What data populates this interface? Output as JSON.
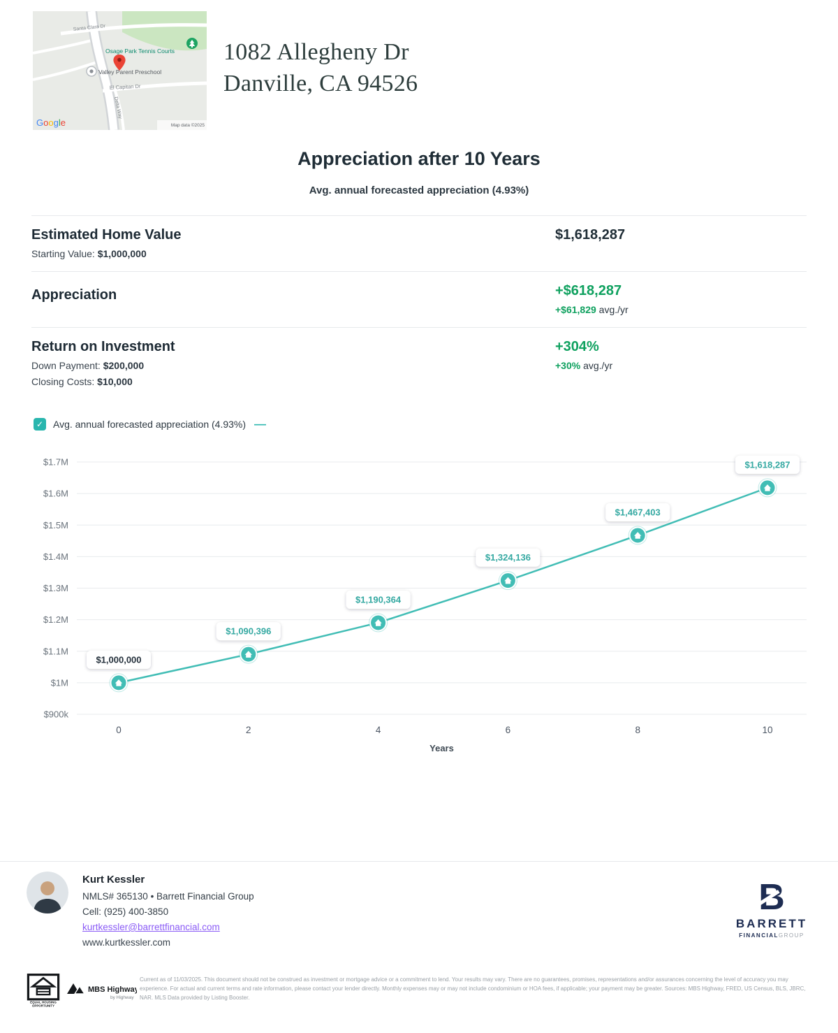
{
  "map": {
    "street_santa_clara": "Santa Clara Dr",
    "poi_tennis": "Osage Park Tennis Courts",
    "poi_preschool": "Valley Parent Preschool",
    "street_el_capitan": "El Capitan Dr",
    "street_delta": "Delta Way",
    "google_letters": [
      "G",
      "o",
      "o",
      "g",
      "l",
      "e"
    ],
    "attribution": "Map data ©2025"
  },
  "header": {
    "address_line1": "1082 Allegheny Dr",
    "address_line2": "Danville, CA 94526"
  },
  "report": {
    "title": "Appreciation after 10 Years",
    "subtitle": "Avg. annual forecasted appreciation (4.93%)"
  },
  "stats": {
    "home_value": {
      "title": "Estimated Home Value",
      "sub_label": "Starting Value: ",
      "sub_value": "$1,000,000",
      "amount": "$1,618,287"
    },
    "appreciation": {
      "title": "Appreciation",
      "amount": "+$618,287",
      "sub_value": "+$61,829",
      "sub_suffix": " avg./yr"
    },
    "roi": {
      "title": "Return on Investment",
      "down_label": "Down Payment: ",
      "down_value": "$200,000",
      "closing_label": "Closing Costs: ",
      "closing_value": "$10,000",
      "amount": "+304%",
      "sub_value": "+30%",
      "sub_suffix": " avg./yr"
    }
  },
  "legend": {
    "check": "✓",
    "label": "Avg. annual forecasted appreciation (4.93%)",
    "dash": "—"
  },
  "chart_data": {
    "type": "line",
    "title": "Appreciation after 10 Years",
    "series_name": "Avg. annual forecasted appreciation (4.93%)",
    "x": [
      0,
      2,
      4,
      6,
      8,
      10
    ],
    "values": [
      1000000,
      1090396,
      1190364,
      1324136,
      1467403,
      1618287
    ],
    "point_labels": [
      "$1,000,000",
      "$1,090,396",
      "$1,190,364",
      "$1,324,136",
      "$1,467,403",
      "$1,618,287"
    ],
    "xlabel": "Years",
    "xticks": [
      0,
      2,
      4,
      6,
      8,
      10
    ],
    "xtick_labels": [
      "0",
      "2",
      "4",
      "6",
      "8",
      "10"
    ],
    "ylim": [
      900000,
      1700000
    ],
    "ytick_step": 100000,
    "ytick_labels": [
      "$900k",
      "$1M",
      "$1.1M",
      "$1.2M",
      "$1.3M",
      "$1.4M",
      "$1.5M",
      "$1.6M",
      "$1.7M"
    ],
    "grid": true,
    "legend_position": "top-left",
    "line_color": "#41bdb5",
    "label_color": "#35a9a2",
    "first_label_color": "#25313c"
  },
  "agent": {
    "name": "Kurt Kessler",
    "nmls": "NMLS# 365130 • Barrett Financial Group",
    "cell": "Cell: (925) 400-3850",
    "email": "kurtkessler@barrettfinancial.com",
    "website": "www.kurtkessler.com"
  },
  "barrett_logo": {
    "b": "B",
    "name": "BARRETT",
    "sub1": "FINANCIAL",
    "sub2": "GROUP"
  },
  "footer": {
    "eho_line1": "EQUAL HOUSING",
    "eho_line2": "OPPORTUNITY",
    "mbs_logo_main": "MBS Highway",
    "mbs_logo_sub": "by Highway",
    "disclaimer": "Current as of 11/03/2025. This document should not be construed as investment or mortgage advice or a commitment to lend. Your results may vary. There are no guarantees, promises, representations and/or assurances concerning the level of accuracy you may experience. For actual and current terms and rate information, please contact your lender directly. Monthly expenses may or may not include condominium or HOA fees, if applicable; your payment may be greater. Sources: MBS Highway, FRED, US Census, BLS, JBRC, NAR. MLS Data provided by Listing Booster."
  }
}
